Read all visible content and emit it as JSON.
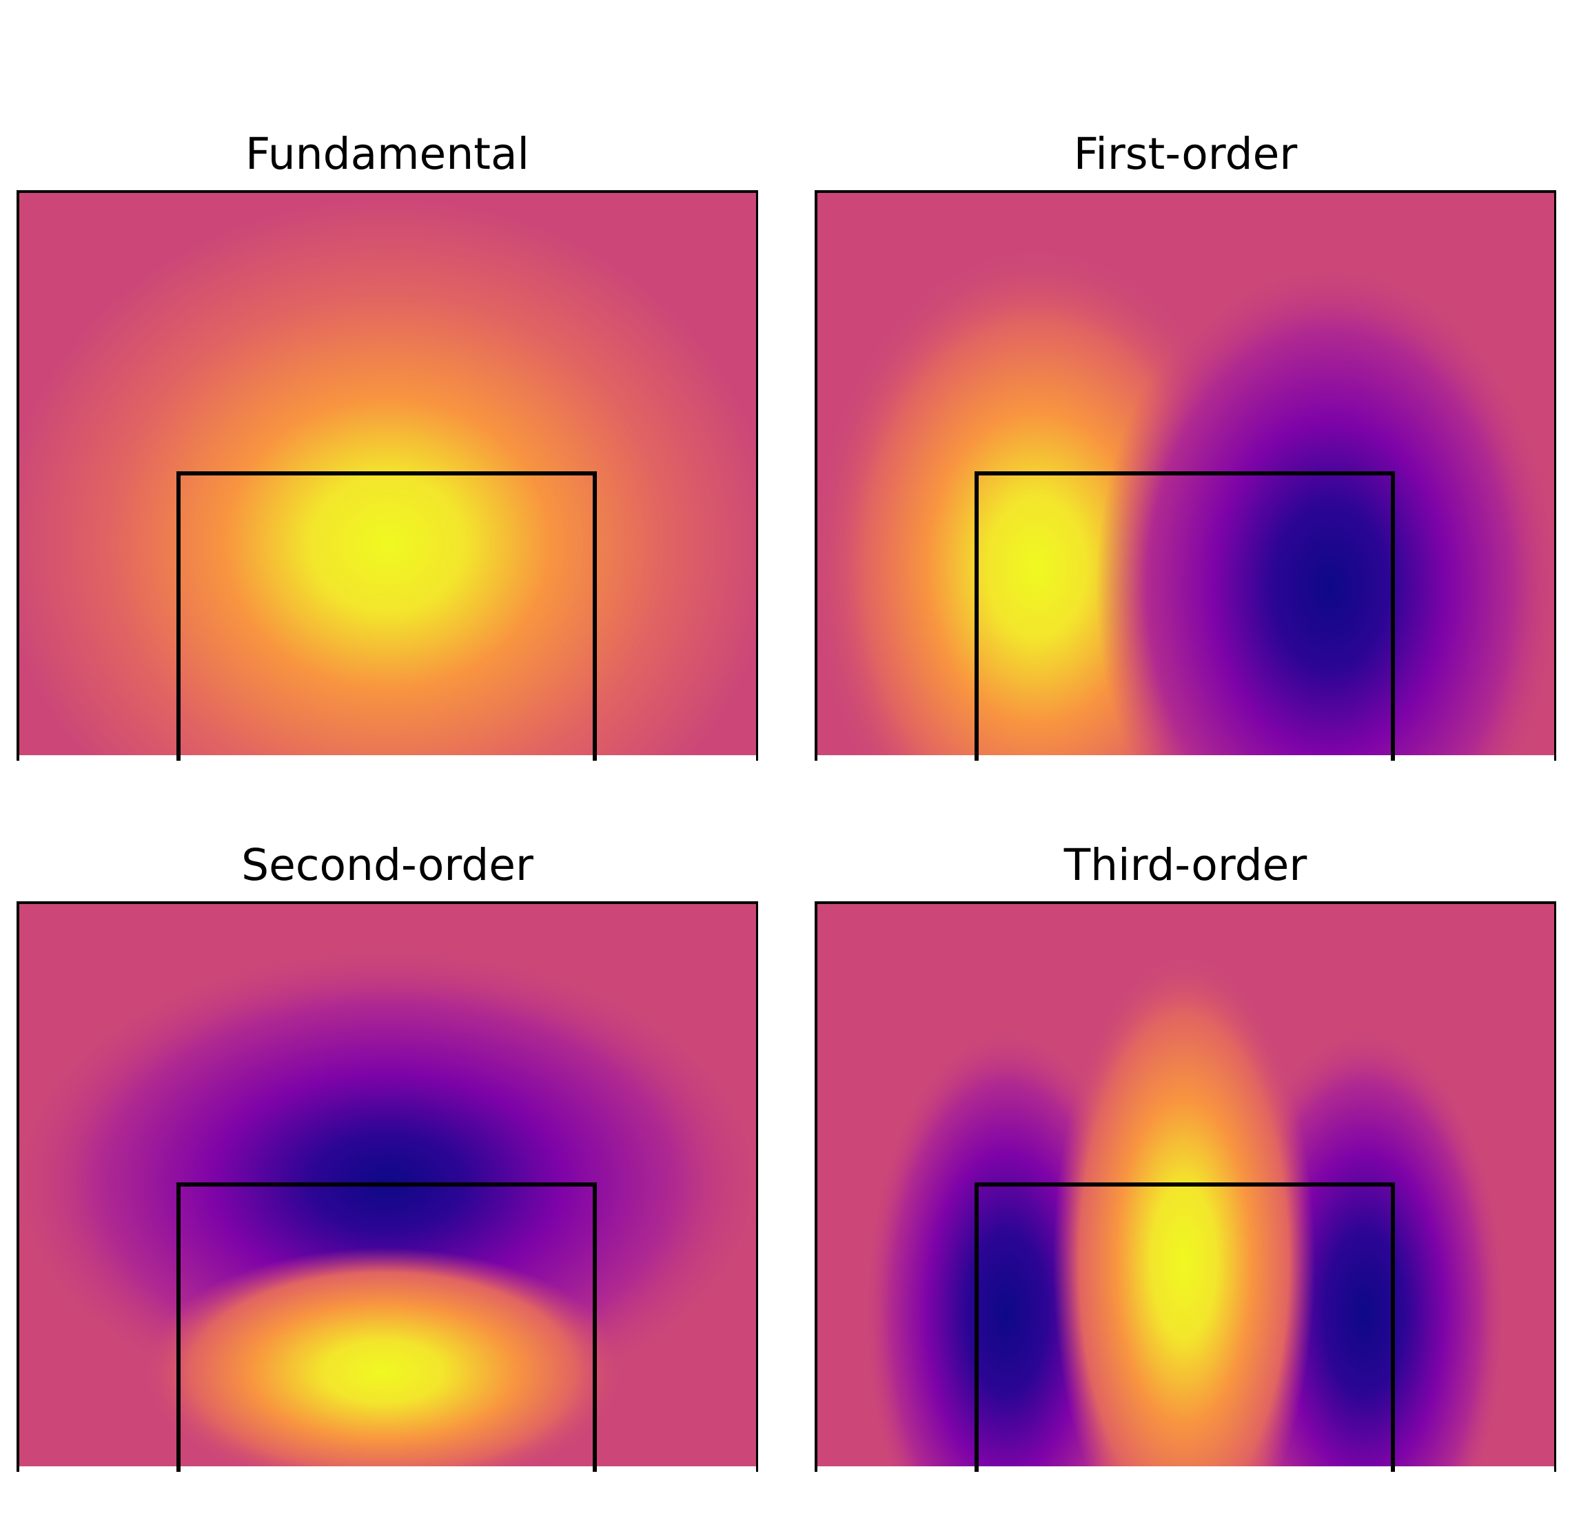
{
  "figure": {
    "panels": [
      {
        "id": "fundamental",
        "title": "Fundamental"
      },
      {
        "id": "first-order",
        "title": "First-order"
      },
      {
        "id": "second-order",
        "title": "Second-order"
      },
      {
        "id": "third-order",
        "title": "Third-order"
      }
    ]
  },
  "chart_data": [
    {
      "type": "heatmap",
      "title": "Fundamental",
      "colormap": "plasma",
      "extrema": [
        {
          "sign": "positive",
          "label": "peak"
        }
      ],
      "colors": {
        "background": "#cc4778",
        "peak": "#f0f921",
        "trough": "#0d0887"
      }
    },
    {
      "type": "heatmap",
      "title": "First-order",
      "colormap": "plasma",
      "extrema": [
        {
          "sign": "positive",
          "label": "left lobe"
        },
        {
          "sign": "negative",
          "label": "right lobe"
        }
      ],
      "colors": {
        "background": "#cc4778",
        "peak": "#f0f921",
        "trough": "#0d0887"
      }
    },
    {
      "type": "heatmap",
      "title": "Second-order",
      "colormap": "plasma",
      "extrema": [
        {
          "sign": "negative",
          "label": "upper lobe"
        },
        {
          "sign": "positive",
          "label": "lower lobe"
        }
      ],
      "colors": {
        "background": "#cc4778",
        "peak": "#f0f921",
        "trough": "#0d0887"
      }
    },
    {
      "type": "heatmap",
      "title": "Third-order",
      "colormap": "plasma",
      "extrema": [
        {
          "sign": "negative",
          "label": "left lobe"
        },
        {
          "sign": "positive",
          "label": "center lobe"
        },
        {
          "sign": "negative",
          "label": "right lobe"
        }
      ],
      "colors": {
        "background": "#cc4778",
        "peak": "#f0f921",
        "trough": "#0d0887"
      }
    }
  ]
}
